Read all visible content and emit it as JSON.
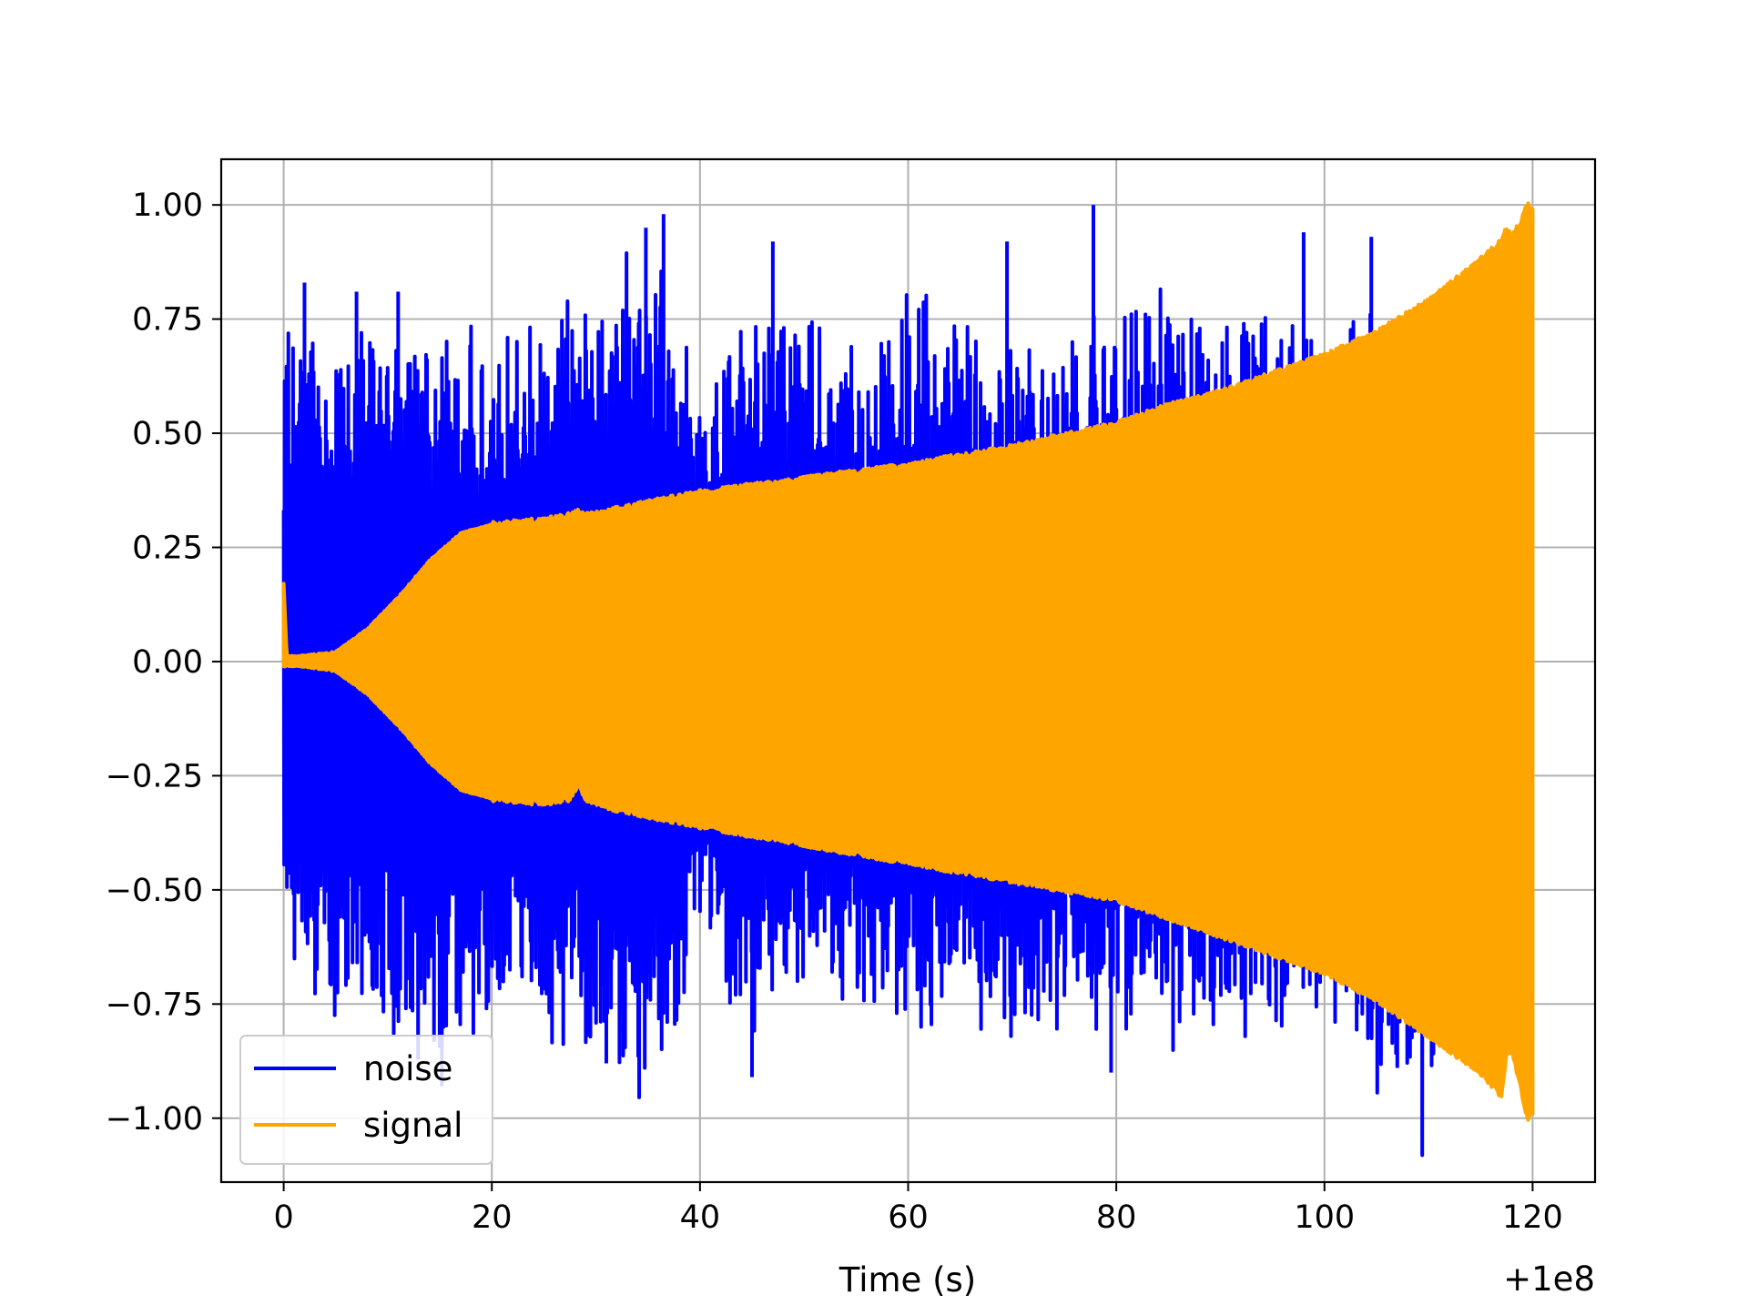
{
  "chart_data": {
    "type": "line",
    "title": "",
    "xlabel": "Time (s)",
    "ylabel": "",
    "x_offset_text": "+1e8",
    "x_offset": 100000000,
    "xlim": [
      -6,
      126
    ],
    "ylim": [
      -1.14,
      1.1
    ],
    "xticks": [
      0,
      20,
      40,
      60,
      80,
      100,
      120
    ],
    "xtick_labels": [
      "0",
      "20",
      "40",
      "60",
      "80",
      "100",
      "120"
    ],
    "yticks": [
      1.0,
      0.75,
      0.5,
      0.25,
      0.0,
      -0.25,
      -0.5,
      -0.75,
      -1.0
    ],
    "ytick_labels": [
      "1.00",
      "0.75",
      "0.50",
      "0.25",
      "0.00",
      "−0.25",
      "−0.50",
      "−0.75",
      "−1.00"
    ],
    "grid": true,
    "legend_position": "lower-left",
    "series": [
      {
        "name": "noise",
        "color": "#0000ff",
        "envelope_x": [
          0,
          5,
          10,
          15,
          20,
          25,
          30,
          35,
          40,
          45,
          50,
          55,
          60,
          65,
          70,
          75,
          80,
          85,
          90,
          95,
          100,
          105,
          110,
          115,
          120
        ],
        "envelope_upper": [
          0.6,
          0.63,
          0.6,
          0.62,
          0.58,
          0.66,
          0.68,
          0.75,
          0.5,
          0.66,
          0.67,
          0.55,
          0.68,
          0.65,
          0.58,
          0.55,
          0.68,
          0.66,
          0.62,
          0.65,
          0.57,
          0.66,
          0.5,
          0.6,
          0.2
        ],
        "envelope_lower": [
          -0.55,
          -0.65,
          -0.66,
          -0.76,
          -0.62,
          -0.66,
          -0.75,
          -0.84,
          -0.58,
          -0.66,
          -0.62,
          -0.63,
          -0.72,
          -0.63,
          -0.7,
          -0.7,
          -0.68,
          -0.7,
          -0.7,
          -0.72,
          -0.63,
          -0.78,
          -0.88,
          -0.7,
          -0.1
        ],
        "spikes": [
          {
            "x": 2.0,
            "y": 0.83
          },
          {
            "x": 7.0,
            "y": 0.81
          },
          {
            "x": 11.0,
            "y": 0.81
          },
          {
            "x": 34.8,
            "y": 0.95
          },
          {
            "x": 36.5,
            "y": 0.98
          },
          {
            "x": 47.0,
            "y": 0.92
          },
          {
            "x": 69.5,
            "y": 0.92
          },
          {
            "x": 77.8,
            "y": 1.0
          },
          {
            "x": 98.0,
            "y": 0.94
          },
          {
            "x": 104.5,
            "y": 0.93
          },
          {
            "x": 15.2,
            "y": -0.93
          },
          {
            "x": 45.0,
            "y": -0.91
          },
          {
            "x": 79.5,
            "y": -0.9
          },
          {
            "x": 107.0,
            "y": -0.89
          },
          {
            "x": 31.0,
            "y": -0.88
          }
        ]
      },
      {
        "name": "signal",
        "color": "#ffa500",
        "envelope_x": [
          0,
          0.3,
          2,
          5,
          8,
          11,
          14,
          17,
          20,
          25,
          27.5,
          28.3,
          29,
          31,
          40,
          50,
          60,
          70,
          80,
          85,
          90,
          100,
          105,
          110,
          115,
          117,
          117.5,
          118,
          119,
          119.5,
          120
        ],
        "envelope_upper": [
          0.17,
          0.01,
          0.012,
          0.02,
          0.07,
          0.14,
          0.22,
          0.28,
          0.3,
          0.31,
          0.32,
          0.33,
          0.32,
          0.33,
          0.37,
          0.4,
          0.43,
          0.47,
          0.52,
          0.56,
          0.59,
          0.67,
          0.72,
          0.79,
          0.88,
          0.92,
          0.95,
          0.93,
          0.97,
          1.0,
          0.99
        ],
        "envelope_lower": [
          -0.01,
          -0.008,
          -0.01,
          -0.02,
          -0.07,
          -0.14,
          -0.22,
          -0.28,
          -0.3,
          -0.31,
          -0.3,
          -0.27,
          -0.3,
          -0.32,
          -0.36,
          -0.4,
          -0.44,
          -0.48,
          -0.52,
          -0.56,
          -0.6,
          -0.68,
          -0.74,
          -0.82,
          -0.9,
          -0.95,
          -0.86,
          -0.85,
          -0.95,
          -1.0,
          -0.99
        ]
      }
    ]
  }
}
